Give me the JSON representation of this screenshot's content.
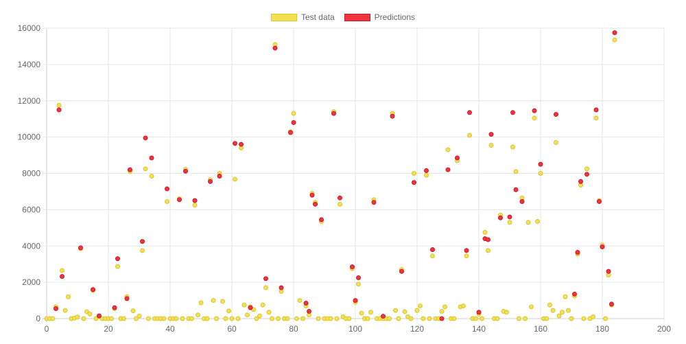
{
  "chart_data": {
    "type": "scatter",
    "title": "",
    "xlabel": "",
    "ylabel": "",
    "xlim": [
      0,
      200
    ],
    "ylim": [
      0,
      16000
    ],
    "x_ticks": [
      0,
      20,
      40,
      60,
      80,
      100,
      120,
      140,
      160,
      180,
      200
    ],
    "y_ticks": [
      0,
      2000,
      4000,
      6000,
      8000,
      10000,
      12000,
      14000,
      16000
    ],
    "grid": true,
    "legend_position": "top-center",
    "series": [
      {
        "name": "Test data",
        "color": "#f3e14d",
        "border": "#d8c53a",
        "points": [
          [
            0,
            0
          ],
          [
            1,
            0
          ],
          [
            2,
            0
          ],
          [
            3,
            650
          ],
          [
            4,
            11750
          ],
          [
            5,
            2650
          ],
          [
            6,
            450
          ],
          [
            7,
            1200
          ],
          [
            8,
            0
          ],
          [
            9,
            30
          ],
          [
            10,
            90
          ],
          [
            11,
            3850
          ],
          [
            12,
            0
          ],
          [
            13,
            380
          ],
          [
            14,
            250
          ],
          [
            15,
            1550
          ],
          [
            16,
            0
          ],
          [
            17,
            120
          ],
          [
            18,
            0
          ],
          [
            19,
            0
          ],
          [
            20,
            0
          ],
          [
            21,
            0
          ],
          [
            22,
            550
          ],
          [
            23,
            2870
          ],
          [
            24,
            0
          ],
          [
            25,
            0
          ],
          [
            26,
            1200
          ],
          [
            27,
            8100
          ],
          [
            28,
            430
          ],
          [
            29,
            0
          ],
          [
            30,
            140
          ],
          [
            31,
            3750
          ],
          [
            32,
            8250
          ],
          [
            33,
            0
          ],
          [
            34,
            7850
          ],
          [
            35,
            0
          ],
          [
            36,
            0
          ],
          [
            37,
            0
          ],
          [
            38,
            0
          ],
          [
            39,
            6450
          ],
          [
            40,
            0
          ],
          [
            41,
            0
          ],
          [
            42,
            0
          ],
          [
            43,
            6600
          ],
          [
            44,
            0
          ],
          [
            45,
            8220
          ],
          [
            46,
            0
          ],
          [
            47,
            0
          ],
          [
            48,
            6250
          ],
          [
            49,
            200
          ],
          [
            50,
            870
          ],
          [
            51,
            0
          ],
          [
            52,
            0
          ],
          [
            53,
            7650
          ],
          [
            54,
            1000
          ],
          [
            55,
            0
          ],
          [
            56,
            8000
          ],
          [
            57,
            950
          ],
          [
            58,
            0
          ],
          [
            59,
            420
          ],
          [
            60,
            0
          ],
          [
            61,
            7680
          ],
          [
            62,
            0
          ],
          [
            63,
            9400
          ],
          [
            64,
            750
          ],
          [
            65,
            200
          ],
          [
            66,
            650
          ],
          [
            67,
            500
          ],
          [
            68,
            0
          ],
          [
            69,
            150
          ],
          [
            70,
            750
          ],
          [
            71,
            1700
          ],
          [
            72,
            350
          ],
          [
            73,
            0
          ],
          [
            74,
            15100
          ],
          [
            75,
            0
          ],
          [
            76,
            1500
          ],
          [
            77,
            0
          ],
          [
            78,
            0
          ],
          [
            79,
            10300
          ],
          [
            80,
            11300
          ],
          [
            81,
            0
          ],
          [
            82,
            1000
          ],
          [
            83,
            0
          ],
          [
            84,
            700
          ],
          [
            85,
            200
          ],
          [
            86,
            6900
          ],
          [
            87,
            6400
          ],
          [
            88,
            0
          ],
          [
            89,
            5350
          ],
          [
            90,
            0
          ],
          [
            91,
            0
          ],
          [
            92,
            0
          ],
          [
            93,
            11400
          ],
          [
            94,
            0
          ],
          [
            95,
            6300
          ],
          [
            96,
            100
          ],
          [
            97,
            0
          ],
          [
            98,
            0
          ],
          [
            99,
            2750
          ],
          [
            100,
            900
          ],
          [
            101,
            1900
          ],
          [
            102,
            300
          ],
          [
            103,
            0
          ],
          [
            104,
            0
          ],
          [
            105,
            350
          ],
          [
            106,
            6550
          ],
          [
            107,
            0
          ],
          [
            108,
            0
          ],
          [
            109,
            0
          ],
          [
            110,
            0
          ],
          [
            111,
            0
          ],
          [
            112,
            11300
          ],
          [
            113,
            450
          ],
          [
            114,
            0
          ],
          [
            115,
            2700
          ],
          [
            116,
            380
          ],
          [
            117,
            100
          ],
          [
            118,
            0
          ],
          [
            119,
            8000
          ],
          [
            120,
            450
          ],
          [
            121,
            700
          ],
          [
            122,
            0
          ],
          [
            123,
            7900
          ],
          [
            124,
            0
          ],
          [
            125,
            3450
          ],
          [
            126,
            0
          ],
          [
            127,
            0
          ],
          [
            128,
            400
          ],
          [
            129,
            650
          ],
          [
            130,
            9300
          ],
          [
            131,
            0
          ],
          [
            132,
            0
          ],
          [
            133,
            8700
          ],
          [
            134,
            650
          ],
          [
            135,
            700
          ],
          [
            136,
            3450
          ],
          [
            137,
            10100
          ],
          [
            138,
            0
          ],
          [
            139,
            0
          ],
          [
            140,
            250
          ],
          [
            141,
            0
          ],
          [
            142,
            4750
          ],
          [
            143,
            3750
          ],
          [
            144,
            9550
          ],
          [
            145,
            0
          ],
          [
            146,
            0
          ],
          [
            147,
            5700
          ],
          [
            148,
            400
          ],
          [
            149,
            350
          ],
          [
            150,
            5300
          ],
          [
            151,
            9450
          ],
          [
            152,
            8100
          ],
          [
            153,
            0
          ],
          [
            154,
            6650
          ],
          [
            155,
            0
          ],
          [
            156,
            5300
          ],
          [
            157,
            650
          ],
          [
            158,
            11050
          ],
          [
            159,
            5350
          ],
          [
            160,
            8000
          ],
          [
            161,
            0
          ],
          [
            162,
            0
          ],
          [
            163,
            750
          ],
          [
            164,
            450
          ],
          [
            165,
            9700
          ],
          [
            166,
            150
          ],
          [
            167,
            350
          ],
          [
            168,
            1200
          ],
          [
            169,
            450
          ],
          [
            170,
            0
          ],
          [
            171,
            1250
          ],
          [
            172,
            3550
          ],
          [
            173,
            7350
          ],
          [
            174,
            0
          ],
          [
            175,
            8250
          ],
          [
            176,
            0
          ],
          [
            177,
            100
          ],
          [
            178,
            11050
          ],
          [
            179,
            6500
          ],
          [
            180,
            4050
          ],
          [
            181,
            0
          ],
          [
            182,
            2400
          ],
          [
            183,
            750
          ],
          [
            184,
            15350
          ]
        ]
      },
      {
        "name": "Predictions",
        "color": "#f0333f",
        "border": "#c81e2a",
        "points": [
          [
            3,
            550
          ],
          [
            4,
            11500
          ],
          [
            5,
            2320
          ],
          [
            11,
            3900
          ],
          [
            15,
            1600
          ],
          [
            17,
            150
          ],
          [
            22,
            600
          ],
          [
            23,
            3300
          ],
          [
            26,
            1100
          ],
          [
            27,
            8200
          ],
          [
            31,
            4250
          ],
          [
            32,
            9950
          ],
          [
            34,
            8850
          ],
          [
            39,
            7150
          ],
          [
            43,
            6550
          ],
          [
            45,
            8120
          ],
          [
            48,
            6500
          ],
          [
            53,
            7550
          ],
          [
            56,
            7850
          ],
          [
            61,
            9650
          ],
          [
            63,
            9600
          ],
          [
            66,
            600
          ],
          [
            71,
            2200
          ],
          [
            74,
            14900
          ],
          [
            76,
            1700
          ],
          [
            79,
            10250
          ],
          [
            80,
            10800
          ],
          [
            84,
            850
          ],
          [
            85,
            400
          ],
          [
            86,
            6800
          ],
          [
            87,
            6300
          ],
          [
            89,
            5450
          ],
          [
            93,
            11300
          ],
          [
            95,
            6650
          ],
          [
            99,
            2850
          ],
          [
            100,
            1000
          ],
          [
            101,
            2250
          ],
          [
            106,
            6400
          ],
          [
            109,
            130
          ],
          [
            112,
            11150
          ],
          [
            115,
            2600
          ],
          [
            119,
            7500
          ],
          [
            123,
            8150
          ],
          [
            125,
            3800
          ],
          [
            128,
            0
          ],
          [
            130,
            8200
          ],
          [
            133,
            8850
          ],
          [
            136,
            3750
          ],
          [
            137,
            11350
          ],
          [
            140,
            350
          ],
          [
            142,
            4400
          ],
          [
            143,
            4350
          ],
          [
            144,
            10150
          ],
          [
            147,
            5550
          ],
          [
            150,
            5600
          ],
          [
            151,
            11350
          ],
          [
            152,
            7100
          ],
          [
            154,
            6450
          ],
          [
            158,
            11450
          ],
          [
            160,
            8500
          ],
          [
            165,
            11250
          ],
          [
            171,
            1350
          ],
          [
            172,
            3650
          ],
          [
            173,
            7550
          ],
          [
            175,
            7950
          ],
          [
            178,
            11500
          ],
          [
            179,
            6450
          ],
          [
            180,
            3950
          ],
          [
            182,
            2600
          ],
          [
            183,
            800
          ],
          [
            184,
            15750
          ]
        ]
      }
    ]
  }
}
